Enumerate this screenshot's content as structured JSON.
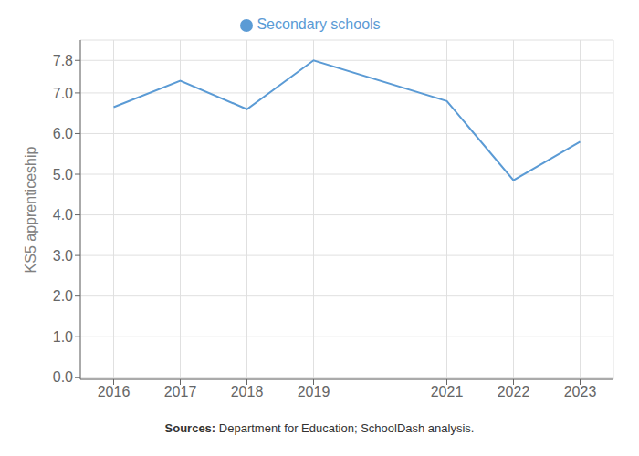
{
  "chart_data": {
    "type": "line",
    "ylabel": "KS5 apprenticeship",
    "x": [
      2016,
      2017,
      2018,
      2019,
      2021,
      2022,
      2023
    ],
    "xlim": [
      2015.5,
      2023.5
    ],
    "xticks": [
      2016,
      2017,
      2018,
      2019,
      2021,
      2022,
      2023
    ],
    "ylim": [
      -0.05,
      8.3
    ],
    "yticks": [
      {
        "value": 0,
        "label": "0.0"
      },
      {
        "value": 1,
        "label": "1.0"
      },
      {
        "value": 2,
        "label": "2.0"
      },
      {
        "value": 3,
        "label": "3.0"
      },
      {
        "value": 4,
        "label": "4.0"
      },
      {
        "value": 5,
        "label": "5.0"
      },
      {
        "value": 6,
        "label": "6.0"
      },
      {
        "value": 7,
        "label": "7.0"
      },
      7.8
    ],
    "series": [
      {
        "name": "Secondary schools",
        "color": "#5b9bd5",
        "values": [
          6.65,
          7.3,
          6.6,
          7.8,
          6.8,
          4.85,
          5.8
        ]
      }
    ],
    "grid": true,
    "legend": "top",
    "annotations": [
      "Sources:",
      " Department for Education; SchoolDash analysis."
    ]
  }
}
